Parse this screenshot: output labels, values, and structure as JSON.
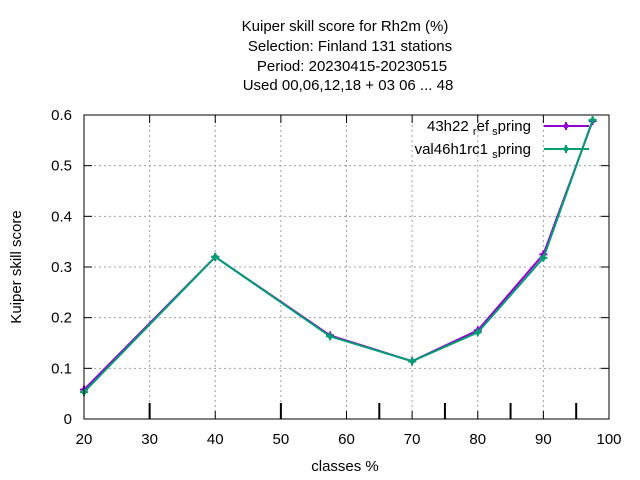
{
  "chart_data": {
    "type": "line",
    "title_lines": [
      "Kuiper skill score  for Rh2m (%)",
      "Selection: Finland    131 stations",
      "Period: 20230415-20230515",
      "Used  00,06,12,18  + 03 06 ... 48"
    ],
    "xlabel": "classes %",
    "ylabel": "Kuiper skill score",
    "xlim": [
      20,
      100
    ],
    "ylim": [
      0,
      0.6
    ],
    "xticks": [
      20,
      30,
      40,
      50,
      60,
      70,
      80,
      90,
      100
    ],
    "yticks": [
      0,
      0.1,
      0.2,
      0.3,
      0.4,
      0.5,
      0.6
    ],
    "xtick_labels": [
      "20",
      "30",
      "40",
      "50",
      "60",
      "70",
      "80",
      "90",
      "100"
    ],
    "ytick_labels": [
      "0",
      "0.1",
      "0.2",
      "0.3",
      "0.4",
      "0.5",
      "0.6"
    ],
    "class_markers": [
      30,
      50,
      65,
      75,
      85,
      95
    ],
    "grid": true,
    "legend_position": "top-right",
    "series": [
      {
        "name_main": "43h22",
        "name_sub": "ref",
        "name_end": "spring",
        "name": "43h22_ref_spring",
        "color": "#9400d3",
        "x": [
          20,
          40,
          57.5,
          70,
          80,
          90,
          97.5
        ],
        "y": [
          0.058,
          0.32,
          0.165,
          0.114,
          0.175,
          0.325,
          0.588
        ]
      },
      {
        "name_main": "val46h1rc1",
        "name_sub": "",
        "name_end": "spring",
        "name": "val46h1rc1_spring",
        "color": "#009e73",
        "x": [
          20,
          40,
          57.5,
          70,
          80,
          90,
          97.5
        ],
        "y": [
          0.053,
          0.32,
          0.163,
          0.114,
          0.171,
          0.318,
          0.59
        ]
      }
    ]
  }
}
